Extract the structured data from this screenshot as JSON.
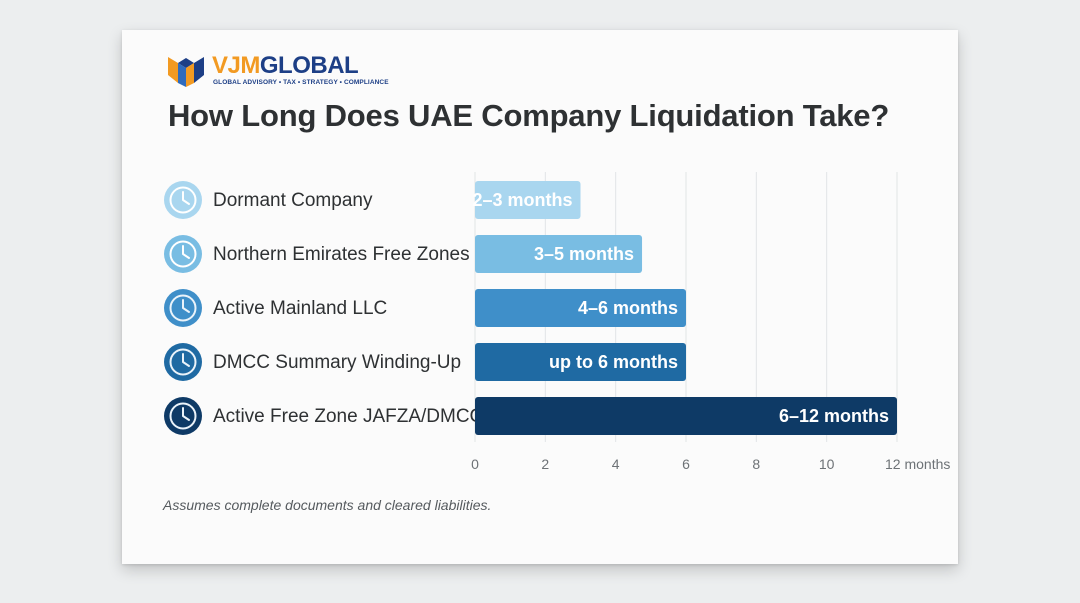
{
  "brand": {
    "name_part1": "VJM",
    "name_part2": "GLOBAL",
    "tagline": "GLOBAL ADVISORY • TAX • STRATEGY • COMPLIANCE",
    "colors": {
      "orange": "#f29a22",
      "navy": "#1d3f86"
    }
  },
  "footnote": "Assumes complete documents and cleared liabilities.",
  "chart_data": {
    "type": "bar",
    "orientation": "horizontal",
    "title": "How Long Does UAE Company Liquidation Take?",
    "categories": [
      "Dormant Company",
      "Northern Emirates Free Zones",
      "Active Mainland LLC",
      "DMCC Summary Winding-Up",
      "Active Free Zone JAFZA/DMCC"
    ],
    "values": [
      3,
      4.75,
      6,
      6,
      12
    ],
    "data_labels": [
      "2–3 months",
      "3–5 months",
      "4–6 months",
      "up to 6 months",
      "6–12 months"
    ],
    "bar_colors": [
      "#a9d6ef",
      "#79bde3",
      "#3f8fc9",
      "#1f6aa3",
      "#0e3a66"
    ],
    "category_icon": "clock-icon",
    "xlim": [
      0,
      12
    ],
    "xticks": [
      0,
      2,
      4,
      6,
      8,
      10,
      12
    ],
    "xtick_labels": [
      "0",
      "2",
      "4",
      "6",
      "8",
      "10",
      "12 months"
    ],
    "grid": true
  }
}
